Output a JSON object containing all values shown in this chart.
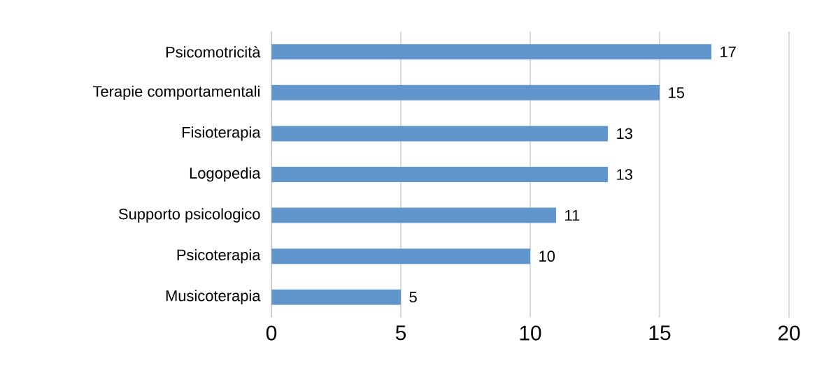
{
  "chart_data": {
    "type": "bar",
    "orientation": "horizontal",
    "categories": [
      "Psicomotricità",
      "Terapie comportamentali",
      "Fisioterapia",
      "Logopedia",
      "Supporto psicologico",
      "Psicoterapia",
      "Musicoterapia"
    ],
    "values": [
      17,
      15,
      13,
      13,
      11,
      10,
      5
    ],
    "color": "#6096cc",
    "xlim": [
      0,
      20
    ],
    "xticks": [
      0,
      5,
      10,
      15,
      20
    ],
    "grid": "x",
    "data_labels": true
  }
}
